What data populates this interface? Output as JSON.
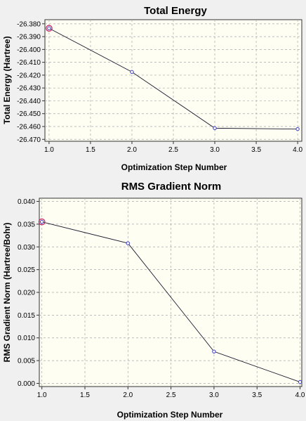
{
  "chart_data": [
    {
      "type": "line",
      "title": "Total Energy",
      "xlabel": "Optimization Step Number",
      "ylabel": "Total Energy (Hartree)",
      "x": [
        1.0,
        2.0,
        3.0,
        4.0
      ],
      "series": [
        {
          "values": [
            -26.3835,
            -26.4175,
            -26.4613,
            -26.462
          ]
        }
      ],
      "xlim": [
        0.95,
        4.05
      ],
      "ylim": [
        -26.4715,
        -26.3768
      ],
      "xticks": [
        "1.0",
        "1.5",
        "2.0",
        "2.5",
        "3.0",
        "3.5",
        "4.0"
      ],
      "yticks": [
        "-26.380",
        "-26.390",
        "-26.400",
        "-26.410",
        "-26.420",
        "-26.430",
        "-26.440",
        "-26.450",
        "-26.460",
        "-26.470"
      ],
      "grid": true,
      "colors": {
        "line": "#1a1a2e",
        "marker": "#3a3ac8",
        "highlight": "#c8145a",
        "plot_bg": "#fefef2"
      }
    },
    {
      "type": "line",
      "title": "RMS Gradient Norm",
      "xlabel": "Optimization Step Number",
      "ylabel": "RMS Gradient Norm (Hartree/Bohr)",
      "x": [
        1.0,
        2.0,
        3.0,
        4.0
      ],
      "series": [
        {
          "values": [
            0.0355,
            0.0308,
            0.007,
            0.0003
          ]
        }
      ],
      "xlim": [
        0.97,
        4.02
      ],
      "ylim": [
        -0.0007,
        0.0407
      ],
      "xticks": [
        "1.0",
        "1.5",
        "2.0",
        "2.5",
        "3.0",
        "3.5",
        "4.0"
      ],
      "yticks": [
        "0.040",
        "0.035",
        "0.030",
        "0.025",
        "0.020",
        "0.015",
        "0.010",
        "0.005",
        "0.000"
      ],
      "grid": true,
      "colors": {
        "line": "#1a1a2e",
        "marker": "#3a3ac8",
        "highlight": "#c8145a",
        "plot_bg": "#fefef2"
      }
    }
  ]
}
